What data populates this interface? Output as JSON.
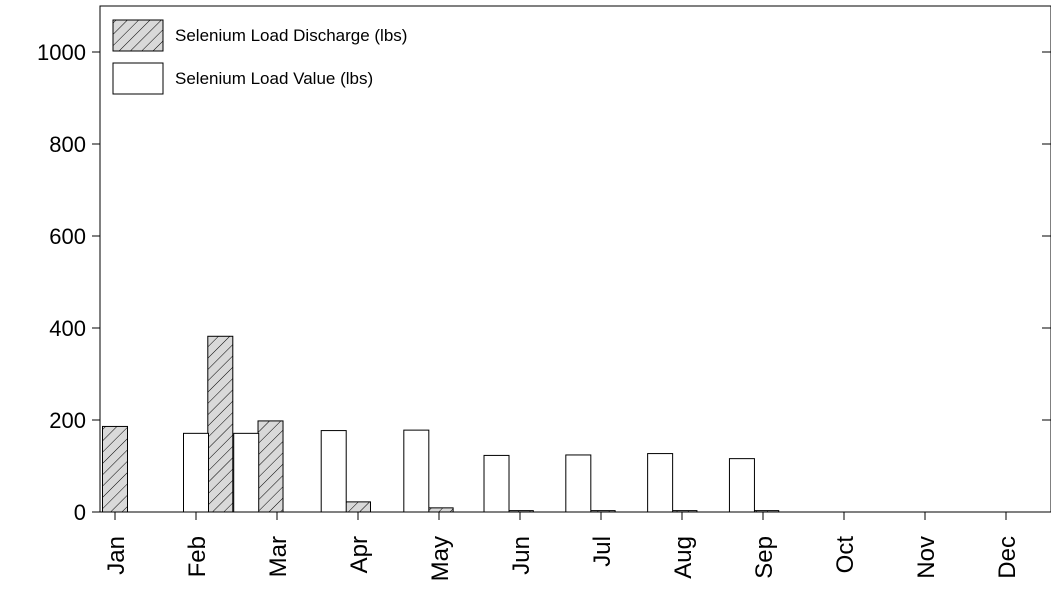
{
  "chart_data": {
    "type": "bar",
    "categories": [
      "Jan",
      "Feb",
      "Mar",
      "Apr",
      "May",
      "Jun",
      "Jul",
      "Aug",
      "Sep",
      "Oct",
      "Nov",
      "Dec"
    ],
    "x_positions": [
      0,
      1,
      2,
      3,
      4,
      5,
      6,
      7,
      8,
      9,
      10,
      11
    ],
    "ylim": [
      0,
      1100
    ],
    "yticks": [
      0,
      200,
      400,
      600,
      800,
      1000
    ],
    "ytick_labels": [
      "0",
      "200",
      "400",
      "600",
      "800",
      "1000"
    ],
    "series": [
      {
        "name": "Selenium Load Discharge (lbs)",
        "style": "hatched",
        "color": "#d9d9d9",
        "x": [
          0,
          1.3,
          1.92,
          3.0,
          4.02,
          5.01,
          6.02,
          7.03,
          8.04
        ],
        "values": [
          186,
          382,
          198,
          22,
          9,
          3,
          3,
          3,
          3
        ]
      },
      {
        "name": "Selenium Load Value (lbs)",
        "style": "open",
        "color": "#ffffff",
        "x": [
          1.0,
          1.62,
          2.7,
          3.72,
          4.71,
          5.72,
          6.73,
          7.74
        ],
        "values": [
          171,
          171,
          177,
          178,
          123,
          124,
          127,
          116
        ]
      }
    ],
    "legend": "top-left",
    "grid": false
  }
}
